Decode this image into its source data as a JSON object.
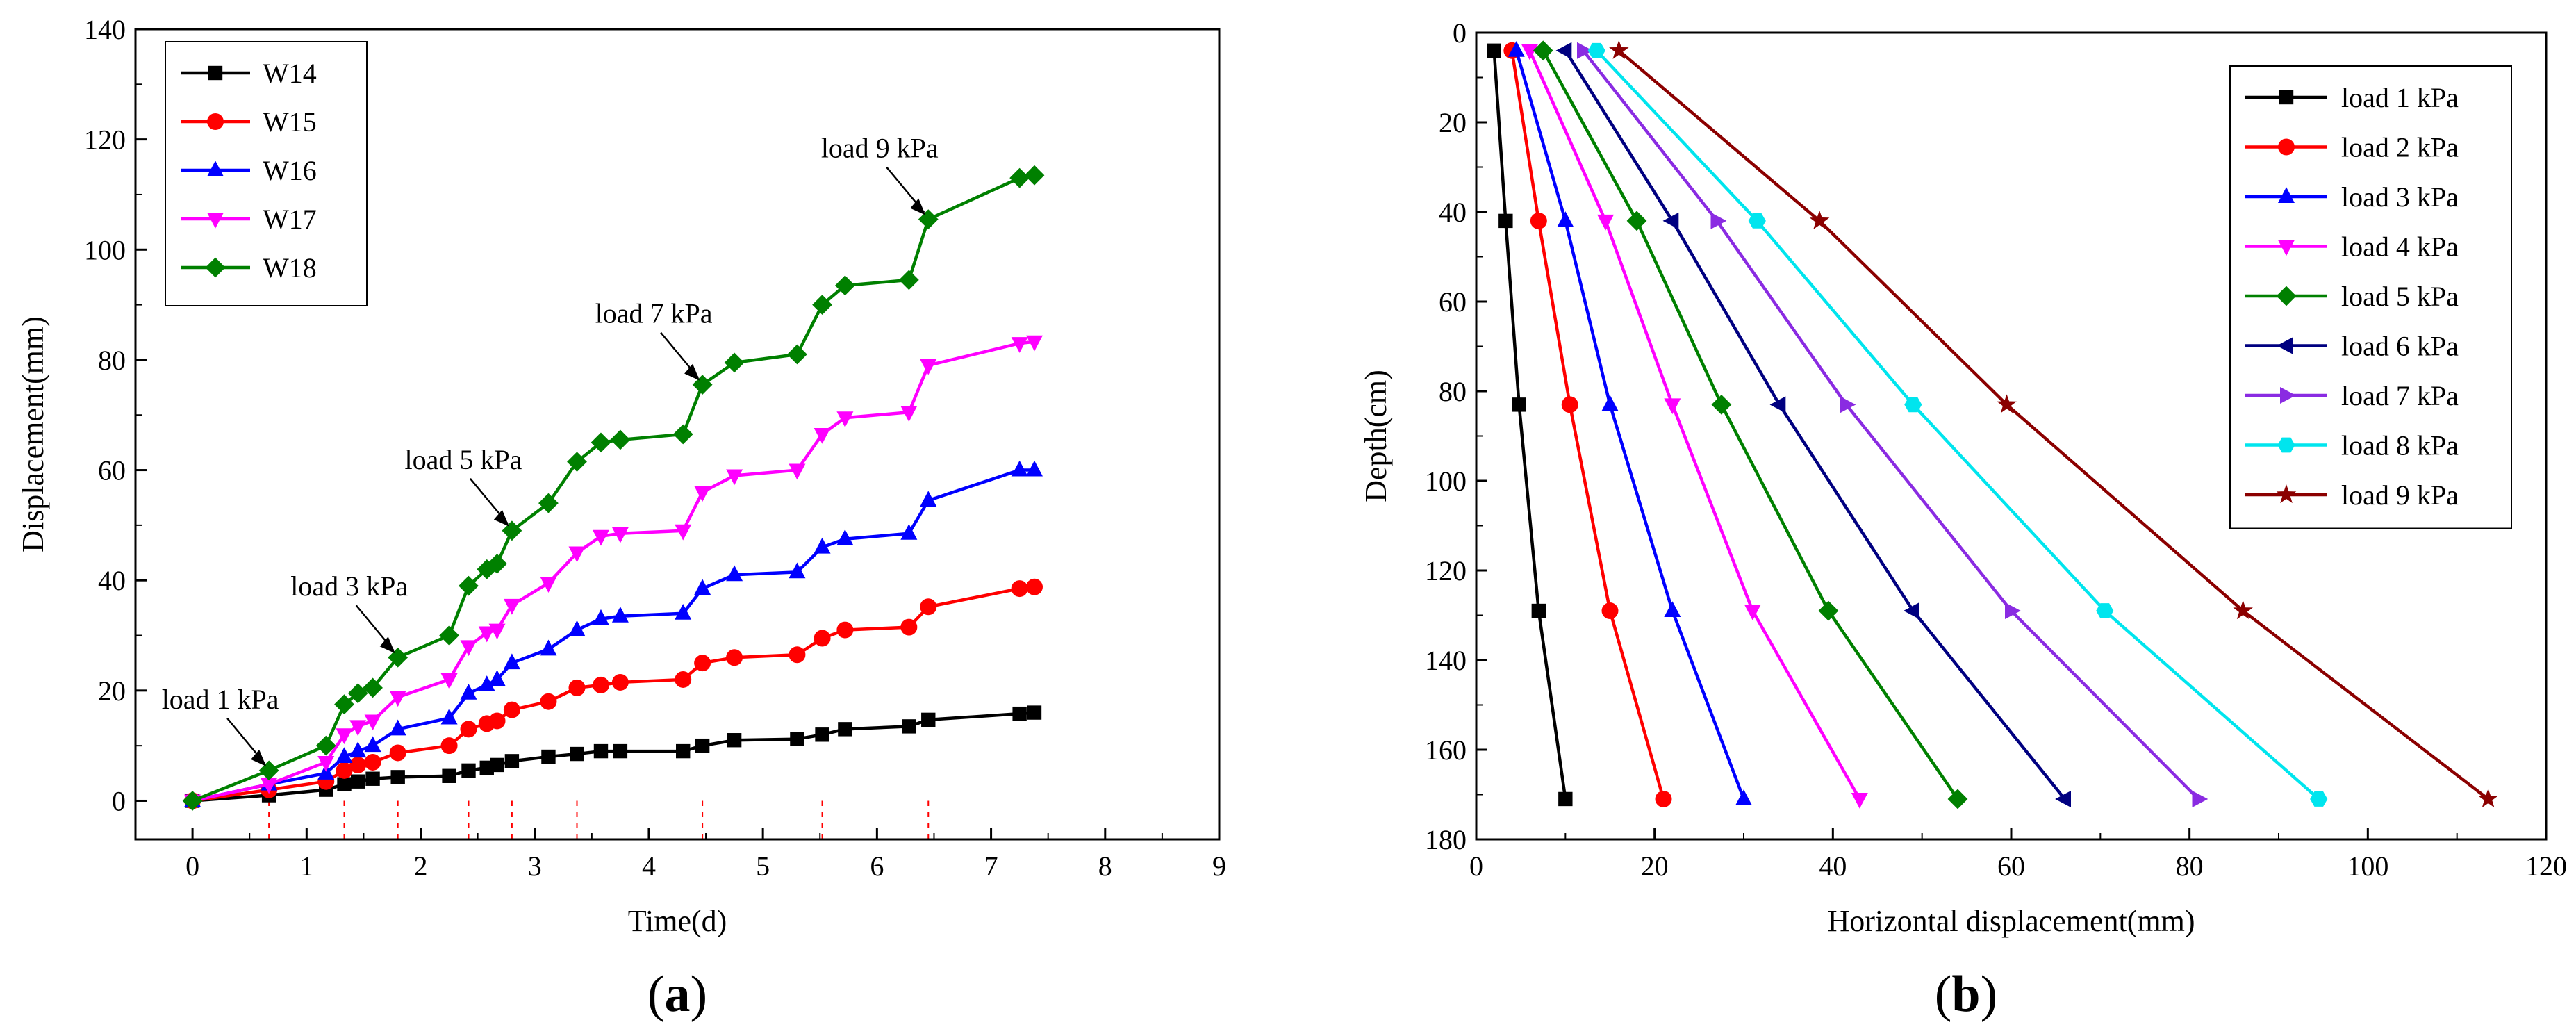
{
  "chart_data": [
    {
      "type": "line",
      "panel": "a",
      "panel_label": "a",
      "xlabel": "Time(d)",
      "ylabel": "Displacement(mm)",
      "xlim": [
        -0.5,
        9
      ],
      "ylim": [
        -7,
        140
      ],
      "xticks": [
        0,
        1,
        2,
        3,
        4,
        5,
        6,
        7,
        8,
        9
      ],
      "yticks": [
        0,
        20,
        40,
        60,
        80,
        100,
        120,
        140
      ],
      "legend_position": "top-left",
      "x": [
        0,
        0.67,
        1.17,
        1.33,
        1.45,
        1.58,
        1.8,
        2.25,
        2.42,
        2.58,
        2.67,
        2.8,
        3.12,
        3.37,
        3.58,
        3.75,
        4.3,
        4.47,
        4.75,
        5.3,
        5.52,
        5.72,
        6.28,
        6.45,
        7.25,
        7.38
      ],
      "series": [
        {
          "name": "W14",
          "color": "#000000",
          "marker": "square",
          "values": [
            0,
            1,
            2,
            3,
            3.5,
            4,
            4.3,
            4.5,
            5.5,
            6,
            6.5,
            7.2,
            8,
            8.5,
            9,
            9,
            9,
            10,
            11,
            11.2,
            12,
            13,
            13.5,
            14.7,
            15.8,
            16
          ]
        },
        {
          "name": "W15",
          "color": "#ff0000",
          "marker": "circle",
          "values": [
            0,
            2,
            3.5,
            5.5,
            6.5,
            7,
            8.7,
            10,
            13,
            14,
            14.5,
            16.5,
            18,
            20.5,
            21,
            21.5,
            22,
            25,
            26,
            26.5,
            29.5,
            31,
            31.5,
            35.2,
            38.5,
            38.8
          ]
        },
        {
          "name": "W16",
          "color": "#0000ff",
          "marker": "triangle-up",
          "values": [
            0,
            3,
            5,
            8,
            9,
            10,
            13,
            15,
            19.5,
            21,
            22,
            25,
            27.5,
            31,
            33,
            33.5,
            34,
            38.5,
            41,
            41.5,
            46,
            47.5,
            48.5,
            54.5,
            60,
            60
          ]
        },
        {
          "name": "W17",
          "color": "#ff00ff",
          "marker": "triangle-down",
          "values": [
            0,
            3,
            7,
            12,
            13.5,
            14.5,
            18.8,
            22,
            28,
            30.5,
            31,
            35.5,
            39.5,
            45,
            48,
            48.5,
            49,
            56,
            59,
            60,
            66.5,
            69.5,
            70.5,
            79,
            83,
            83.3
          ]
        },
        {
          "name": "W18",
          "color": "#008000",
          "marker": "diamond",
          "values": [
            0,
            5.5,
            10,
            17.5,
            19.5,
            20.5,
            26,
            30,
            39,
            42,
            43,
            49,
            54,
            61.5,
            65,
            65.5,
            66.5,
            75.5,
            79.5,
            81,
            90,
            93.5,
            94.5,
            105.5,
            113,
            113.5
          ]
        }
      ],
      "dashed_lines_x": [
        0.67,
        1.33,
        1.8,
        2.42,
        2.8,
        3.37,
        4.47,
        5.52,
        6.45
      ],
      "annotations": [
        {
          "text": "load 1 kPa",
          "x": 0.67
        },
        {
          "text": "load 3 kPa",
          "x": 1.8
        },
        {
          "text": "load 5 kPa",
          "x": 2.8
        },
        {
          "text": "load 7 kPa",
          "x": 4.47
        },
        {
          "text": "load 9 kPa",
          "x": 6.45
        }
      ]
    },
    {
      "type": "line",
      "panel": "b",
      "panel_label": "b",
      "xlabel": "Horizontal displacement(mm)",
      "ylabel": "Depth(cm)",
      "xlim": [
        0,
        120
      ],
      "ylim": [
        0,
        180
      ],
      "y_inverted": true,
      "xticks": [
        0,
        20,
        40,
        60,
        80,
        100,
        120
      ],
      "yticks": [
        0,
        20,
        40,
        60,
        80,
        100,
        120,
        140,
        160,
        180
      ],
      "legend_position": "top-right",
      "depth": [
        4,
        42,
        83,
        129,
        171
      ],
      "series": [
        {
          "name": "load 1 kPa",
          "color": "#000000",
          "marker": "square",
          "values": [
            2,
            3.3,
            4.8,
            7,
            10
          ]
        },
        {
          "name": "load 2 kPa",
          "color": "#ff0000",
          "marker": "circle",
          "values": [
            4,
            7,
            10.5,
            15,
            21
          ]
        },
        {
          "name": "load 3 kPa",
          "color": "#0000ff",
          "marker": "triangle-up",
          "values": [
            4.5,
            10,
            15,
            22,
            30
          ]
        },
        {
          "name": "load 4 kPa",
          "color": "#ff00ff",
          "marker": "triangle-down",
          "values": [
            6,
            14.5,
            22,
            31,
            43
          ]
        },
        {
          "name": "load 5 kPa",
          "color": "#008000",
          "marker": "diamond",
          "values": [
            7.5,
            18,
            27.5,
            39.5,
            54
          ]
        },
        {
          "name": "load 6 kPa",
          "color": "#000080",
          "marker": "triangle-left",
          "values": [
            10,
            22,
            34,
            49,
            66
          ]
        },
        {
          "name": "load 7 kPa",
          "color": "#8a2be2",
          "marker": "triangle-right",
          "values": [
            12,
            27,
            41.5,
            60,
            81
          ]
        },
        {
          "name": "load 8 kPa",
          "color": "#00e5ee",
          "marker": "hexagon",
          "values": [
            13.5,
            31.5,
            49,
            70.5,
            94.5
          ]
        },
        {
          "name": "load 9 kPa",
          "color": "#8b0000",
          "marker": "star",
          "values": [
            16,
            38.5,
            59.5,
            86,
            113.5
          ]
        }
      ]
    }
  ]
}
